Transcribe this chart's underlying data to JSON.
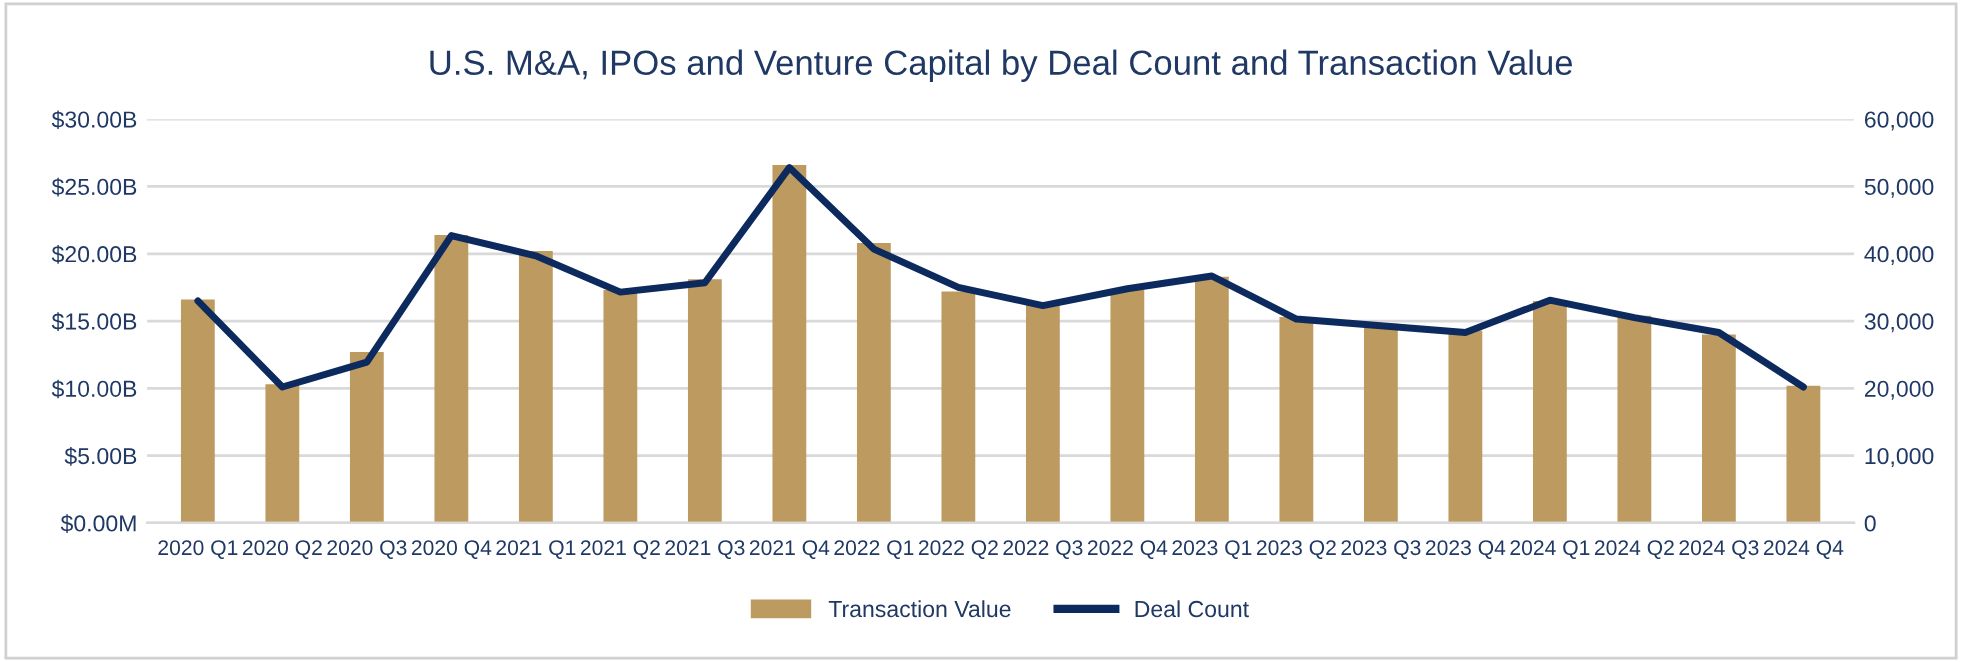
{
  "chart_data": {
    "type": "bar",
    "title": "U.S. M&A, IPOs and Venture Capital by Deal Count and Transaction Value",
    "categories": [
      "2020 Q1",
      "2020 Q2",
      "2020 Q3",
      "2020 Q4",
      "2021 Q1",
      "2021 Q2",
      "2021 Q3",
      "2021 Q4",
      "2022 Q1",
      "2022 Q2",
      "2022 Q3",
      "2022 Q4",
      "2023 Q1",
      "2023 Q2",
      "2023 Q3",
      "2023 Q4",
      "2024 Q1",
      "2024 Q2",
      "2024 Q3",
      "2024 Q4"
    ],
    "series": [
      {
        "name": "Transaction Value",
        "color": "#bd9a5f",
        "values": [
          16.6,
          10.3,
          12.7,
          21.4,
          20.2,
          17.3,
          18.1,
          26.6,
          20.8,
          17.2,
          16.2,
          17.3,
          18.3,
          15.3,
          14.8,
          14.3,
          16.5,
          15.4,
          14.0,
          10.2
        ]
      },
      {
        "name": "Deal Count",
        "type": "line",
        "axis": "y2",
        "color": "#0d2a5f",
        "values": [
          33000,
          20200,
          23900,
          42700,
          39700,
          34300,
          35700,
          52800,
          40700,
          35000,
          32300,
          34800,
          36700,
          30300,
          29300,
          28300,
          33100,
          30500,
          28300,
          20200
        ]
      }
    ],
    "ylim": [
      0,
      30
    ],
    "yticks": [
      {
        "value": 0,
        "label": "$0.00M"
      },
      {
        "value": 5,
        "label": "$5.00B"
      },
      {
        "value": 10,
        "label": "$10.00B"
      },
      {
        "value": 15,
        "label": "$15.00B"
      },
      {
        "value": 20,
        "label": "$20.00B"
      },
      {
        "value": 25,
        "label": "$25.00B"
      },
      {
        "value": 30,
        "label": "$30.00B"
      }
    ],
    "y2lim": [
      0,
      60000
    ],
    "y2ticks": [
      0,
      {
        "value": 10000,
        "label": "10,000"
      },
      {
        "value": 20000,
        "label": "20,000"
      },
      {
        "value": 30000,
        "label": "30,000"
      },
      {
        "value": 40000,
        "label": "40,000"
      },
      {
        "value": 50000,
        "label": "50,000"
      },
      {
        "value": 60000,
        "label": "60,000"
      }
    ],
    "grid": "y",
    "legend": "bottom",
    "marker": "none",
    "line_style": "solid"
  }
}
